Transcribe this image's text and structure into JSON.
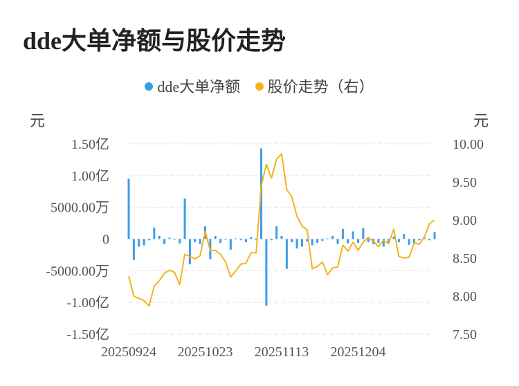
{
  "title": "dde大单净额与股价走势",
  "legend": {
    "bar_label": "dde大单净额",
    "line_label": "股价走势（右）"
  },
  "units": {
    "left": "元",
    "right": "元"
  },
  "colors": {
    "bar": "#3a9de8",
    "line": "#f5b21b",
    "grid": "#e3e3e3"
  },
  "chart_data": {
    "type": "bar+line",
    "y_left": {
      "range": [
        -150000000,
        150000000
      ],
      "ticks": [
        150000000,
        100000000,
        50000000,
        0,
        -50000000,
        -100000000,
        -150000000
      ],
      "tick_labels": [
        "1.50亿",
        "1.00亿",
        "5000.00万",
        "0",
        "-5000.00万",
        "-1.00亿",
        "-1.50亿"
      ]
    },
    "y_right": {
      "range": [
        7.5,
        10.0
      ],
      "ticks": [
        10.0,
        9.5,
        9.0,
        8.5,
        8.0,
        7.5
      ],
      "tick_labels": [
        "10.00",
        "9.50",
        "9.00",
        "8.50",
        "8.00",
        "7.50"
      ]
    },
    "x_tick_labels": [
      {
        "index": 0,
        "label": "20250924"
      },
      {
        "index": 15,
        "label": "20251023"
      },
      {
        "index": 30,
        "label": "20251113"
      },
      {
        "index": 45,
        "label": "20251204"
      }
    ],
    "series": [
      {
        "name": "dde大单净额",
        "type": "bar",
        "values": [
          95000000,
          -33000000,
          -12000000,
          -10000000,
          -2000000,
          18000000,
          5000000,
          -8000000,
          2000000,
          -1000000,
          -7000000,
          64000000,
          -40000000,
          -5000000,
          -8000000,
          20000000,
          -32000000,
          5000000,
          -6000000,
          -1000000,
          -17000000,
          1000000,
          -2000000,
          -5000000,
          3000000,
          -2000000,
          143000000,
          -105000000,
          -2000000,
          20000000,
          5000000,
          -47000000,
          -5000000,
          -15000000,
          -12000000,
          -4000000,
          -10000000,
          -6000000,
          -3000000,
          1000000,
          5000000,
          -8000000,
          16000000,
          -7000000,
          12000000,
          -6000000,
          17000000,
          -5000000,
          -8000000,
          -6000000,
          -12000000,
          -6000000,
          4000000,
          -5000000,
          8000000,
          -9000000,
          -8000000,
          -2000000,
          2000000,
          -2000000,
          11000000
        ],
        "color": "#3a9de8"
      },
      {
        "name": "股价走势（右）",
        "type": "line",
        "axis": "right",
        "values": [
          8.26,
          8.0,
          7.97,
          7.94,
          7.87,
          8.13,
          8.2,
          8.3,
          8.34,
          8.31,
          8.15,
          8.55,
          8.52,
          8.49,
          8.53,
          8.85,
          8.6,
          8.6,
          8.55,
          8.45,
          8.25,
          8.33,
          8.42,
          8.43,
          8.57,
          8.57,
          9.45,
          9.73,
          9.55,
          9.8,
          9.87,
          9.4,
          9.3,
          9.05,
          8.92,
          8.87,
          8.36,
          8.39,
          8.45,
          8.28,
          8.37,
          8.38,
          8.67,
          8.59,
          8.71,
          8.6,
          8.71,
          8.77,
          8.72,
          8.65,
          8.73,
          8.69,
          8.88,
          8.52,
          8.5,
          8.51,
          8.7,
          8.68,
          8.78,
          8.95,
          9.0
        ]
      }
    ],
    "grid": true,
    "legend_position": "top"
  }
}
